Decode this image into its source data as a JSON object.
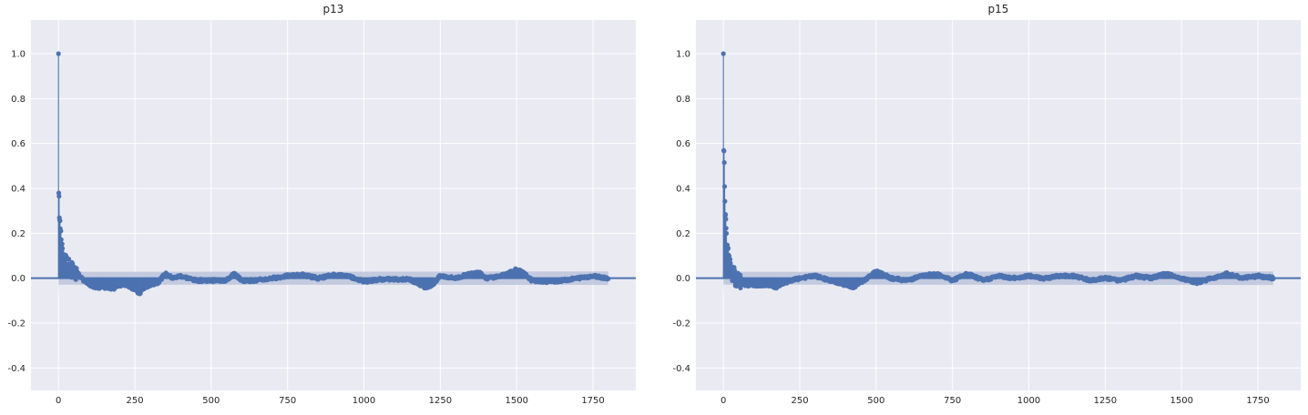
{
  "chart_data": [
    {
      "type": "line",
      "subtype": "stem-autocorrelation",
      "title": "p13",
      "xlabel": "",
      "ylabel": "",
      "xlim": [
        -90,
        1890
      ],
      "ylim": [
        -0.5,
        1.15
      ],
      "xticks": [
        0,
        250,
        500,
        750,
        1000,
        1250,
        1500,
        1750
      ],
      "yticks": [
        -0.4,
        -0.2,
        0.0,
        0.2,
        0.4,
        0.6,
        0.8,
        1.0
      ],
      "ytick_labels": [
        "-0.4",
        "-0.2",
        "0.0",
        "0.2",
        "0.4",
        "0.6",
        "0.8",
        "1.0"
      ],
      "grid": true,
      "confidence_band": 0.03,
      "max_lag": 1800,
      "series": [
        {
          "x": [
            0,
            1,
            2,
            3,
            4,
            5,
            6,
            8,
            10,
            12,
            15,
            20,
            25,
            30,
            40,
            50,
            60,
            75,
            100,
            125,
            150,
            175,
            200,
            225,
            250,
            265,
            275,
            300,
            325,
            350,
            375,
            400,
            450,
            500,
            550,
            575,
            600,
            650,
            700,
            750,
            800,
            850,
            900,
            950,
            1000,
            1050,
            1100,
            1150,
            1200,
            1225,
            1250,
            1300,
            1350,
            1375,
            1400,
            1450,
            1500,
            1525,
            1550,
            1600,
            1650,
            1700,
            1750,
            1800
          ],
          "y": [
            1.0,
            0.38,
            0.36,
            0.3,
            0.28,
            0.26,
            0.22,
            0.18,
            0.15,
            0.13,
            0.1,
            0.08,
            0.06,
            0.05,
            0.04,
            0.03,
            0.03,
            0.0,
            -0.03,
            -0.04,
            -0.04,
            -0.05,
            -0.03,
            -0.03,
            -0.05,
            -0.07,
            -0.05,
            -0.03,
            -0.02,
            0.02,
            0.0,
            0.01,
            -0.01,
            -0.01,
            -0.01,
            0.02,
            -0.01,
            -0.01,
            0.0,
            0.01,
            0.015,
            0.0,
            0.015,
            0.01,
            -0.015,
            -0.005,
            -0.005,
            -0.005,
            -0.04,
            -0.03,
            0.01,
            0.0,
            0.02,
            0.03,
            0.0,
            0.01,
            0.04,
            0.02,
            -0.01,
            -0.015,
            -0.01,
            0.0,
            0.01,
            0.0
          ]
        }
      ]
    },
    {
      "type": "line",
      "subtype": "stem-autocorrelation",
      "title": "p15",
      "xlabel": "",
      "ylabel": "",
      "xlim": [
        -90,
        1890
      ],
      "ylim": [
        -0.5,
        1.15
      ],
      "xticks": [
        0,
        250,
        500,
        750,
        1000,
        1250,
        1500,
        1750
      ],
      "yticks": [
        -0.4,
        -0.2,
        0.0,
        0.2,
        0.4,
        0.6,
        0.8,
        1.0
      ],
      "ytick_labels": [
        "-0.4",
        "-0.2",
        "0.0",
        "0.2",
        "0.4",
        "0.6",
        "0.8",
        "1.0"
      ],
      "grid": true,
      "confidence_band": 0.03,
      "max_lag": 1800,
      "series": [
        {
          "x": [
            0,
            1,
            2,
            3,
            4,
            5,
            6,
            7,
            8,
            10,
            12,
            15,
            18,
            20,
            25,
            30,
            40,
            50,
            75,
            100,
            150,
            175,
            200,
            250,
            300,
            350,
            400,
            425,
            450,
            500,
            550,
            600,
            650,
            700,
            750,
            800,
            850,
            900,
            950,
            1000,
            1050,
            1100,
            1150,
            1200,
            1250,
            1300,
            1350,
            1400,
            1450,
            1500,
            1550,
            1600,
            1650,
            1700,
            1750,
            1800
          ],
          "y": [
            1.0,
            0.53,
            0.55,
            0.5,
            0.42,
            0.34,
            0.29,
            0.26,
            0.23,
            0.18,
            0.15,
            0.12,
            0.09,
            0.07,
            0.04,
            0.02,
            0.0,
            -0.02,
            -0.03,
            -0.03,
            -0.03,
            -0.04,
            -0.02,
            0.0,
            0.01,
            -0.01,
            -0.03,
            -0.04,
            -0.02,
            0.03,
            0.0,
            -0.01,
            0.01,
            0.02,
            -0.01,
            0.02,
            -0.01,
            0.01,
            0.0,
            0.01,
            0.0,
            0.01,
            0.01,
            -0.01,
            0.0,
            -0.01,
            0.01,
            0.0,
            0.02,
            0.0,
            -0.02,
            0.0,
            0.02,
            0.0,
            0.01,
            0.0
          ]
        }
      ]
    }
  ]
}
